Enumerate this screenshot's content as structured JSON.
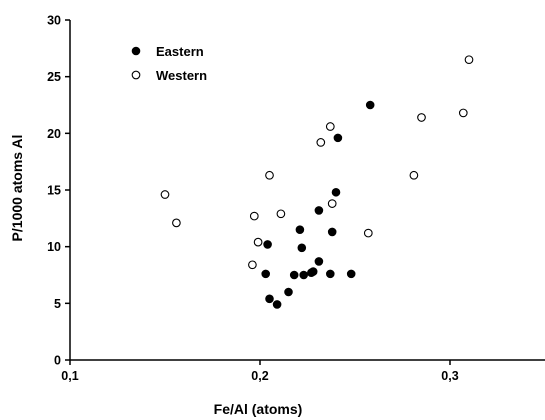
{
  "chart_data": {
    "type": "scatter",
    "xlabel": "Fe/Al (atoms)",
    "ylabel": "P/1000 atoms Al",
    "xlim": [
      0.1,
      0.35
    ],
    "ylim": [
      0,
      30
    ],
    "x_ticks": [
      "0,1",
      "0,2",
      "0,3"
    ],
    "y_ticks": [
      "0",
      "5",
      "10",
      "15",
      "20",
      "25",
      "30"
    ],
    "grid": false,
    "legend_position": "top-left",
    "series": [
      {
        "name": "Eastern",
        "marker": "filled-circle",
        "color": "#000000",
        "points": [
          [
            0.204,
            10.2
          ],
          [
            0.203,
            7.6
          ],
          [
            0.205,
            5.4
          ],
          [
            0.209,
            4.9
          ],
          [
            0.215,
            6.0
          ],
          [
            0.218,
            7.5
          ],
          [
            0.221,
            11.5
          ],
          [
            0.222,
            9.9
          ],
          [
            0.223,
            7.5
          ],
          [
            0.227,
            7.7
          ],
          [
            0.228,
            7.8
          ],
          [
            0.231,
            8.7
          ],
          [
            0.231,
            13.2
          ],
          [
            0.237,
            7.6
          ],
          [
            0.238,
            11.3
          ],
          [
            0.24,
            14.8
          ],
          [
            0.241,
            19.6
          ],
          [
            0.248,
            7.6
          ],
          [
            0.258,
            22.5
          ]
        ]
      },
      {
        "name": "Western",
        "marker": "open-circle",
        "color": "#000000",
        "points": [
          [
            0.15,
            14.6
          ],
          [
            0.156,
            12.1
          ],
          [
            0.196,
            8.4
          ],
          [
            0.197,
            12.7
          ],
          [
            0.199,
            10.4
          ],
          [
            0.205,
            16.3
          ],
          [
            0.211,
            12.9
          ],
          [
            0.232,
            19.2
          ],
          [
            0.237,
            20.6
          ],
          [
            0.238,
            13.8
          ],
          [
            0.257,
            11.2
          ],
          [
            0.281,
            16.3
          ],
          [
            0.285,
            21.4
          ],
          [
            0.307,
            21.8
          ],
          [
            0.31,
            26.5
          ]
        ]
      }
    ]
  }
}
